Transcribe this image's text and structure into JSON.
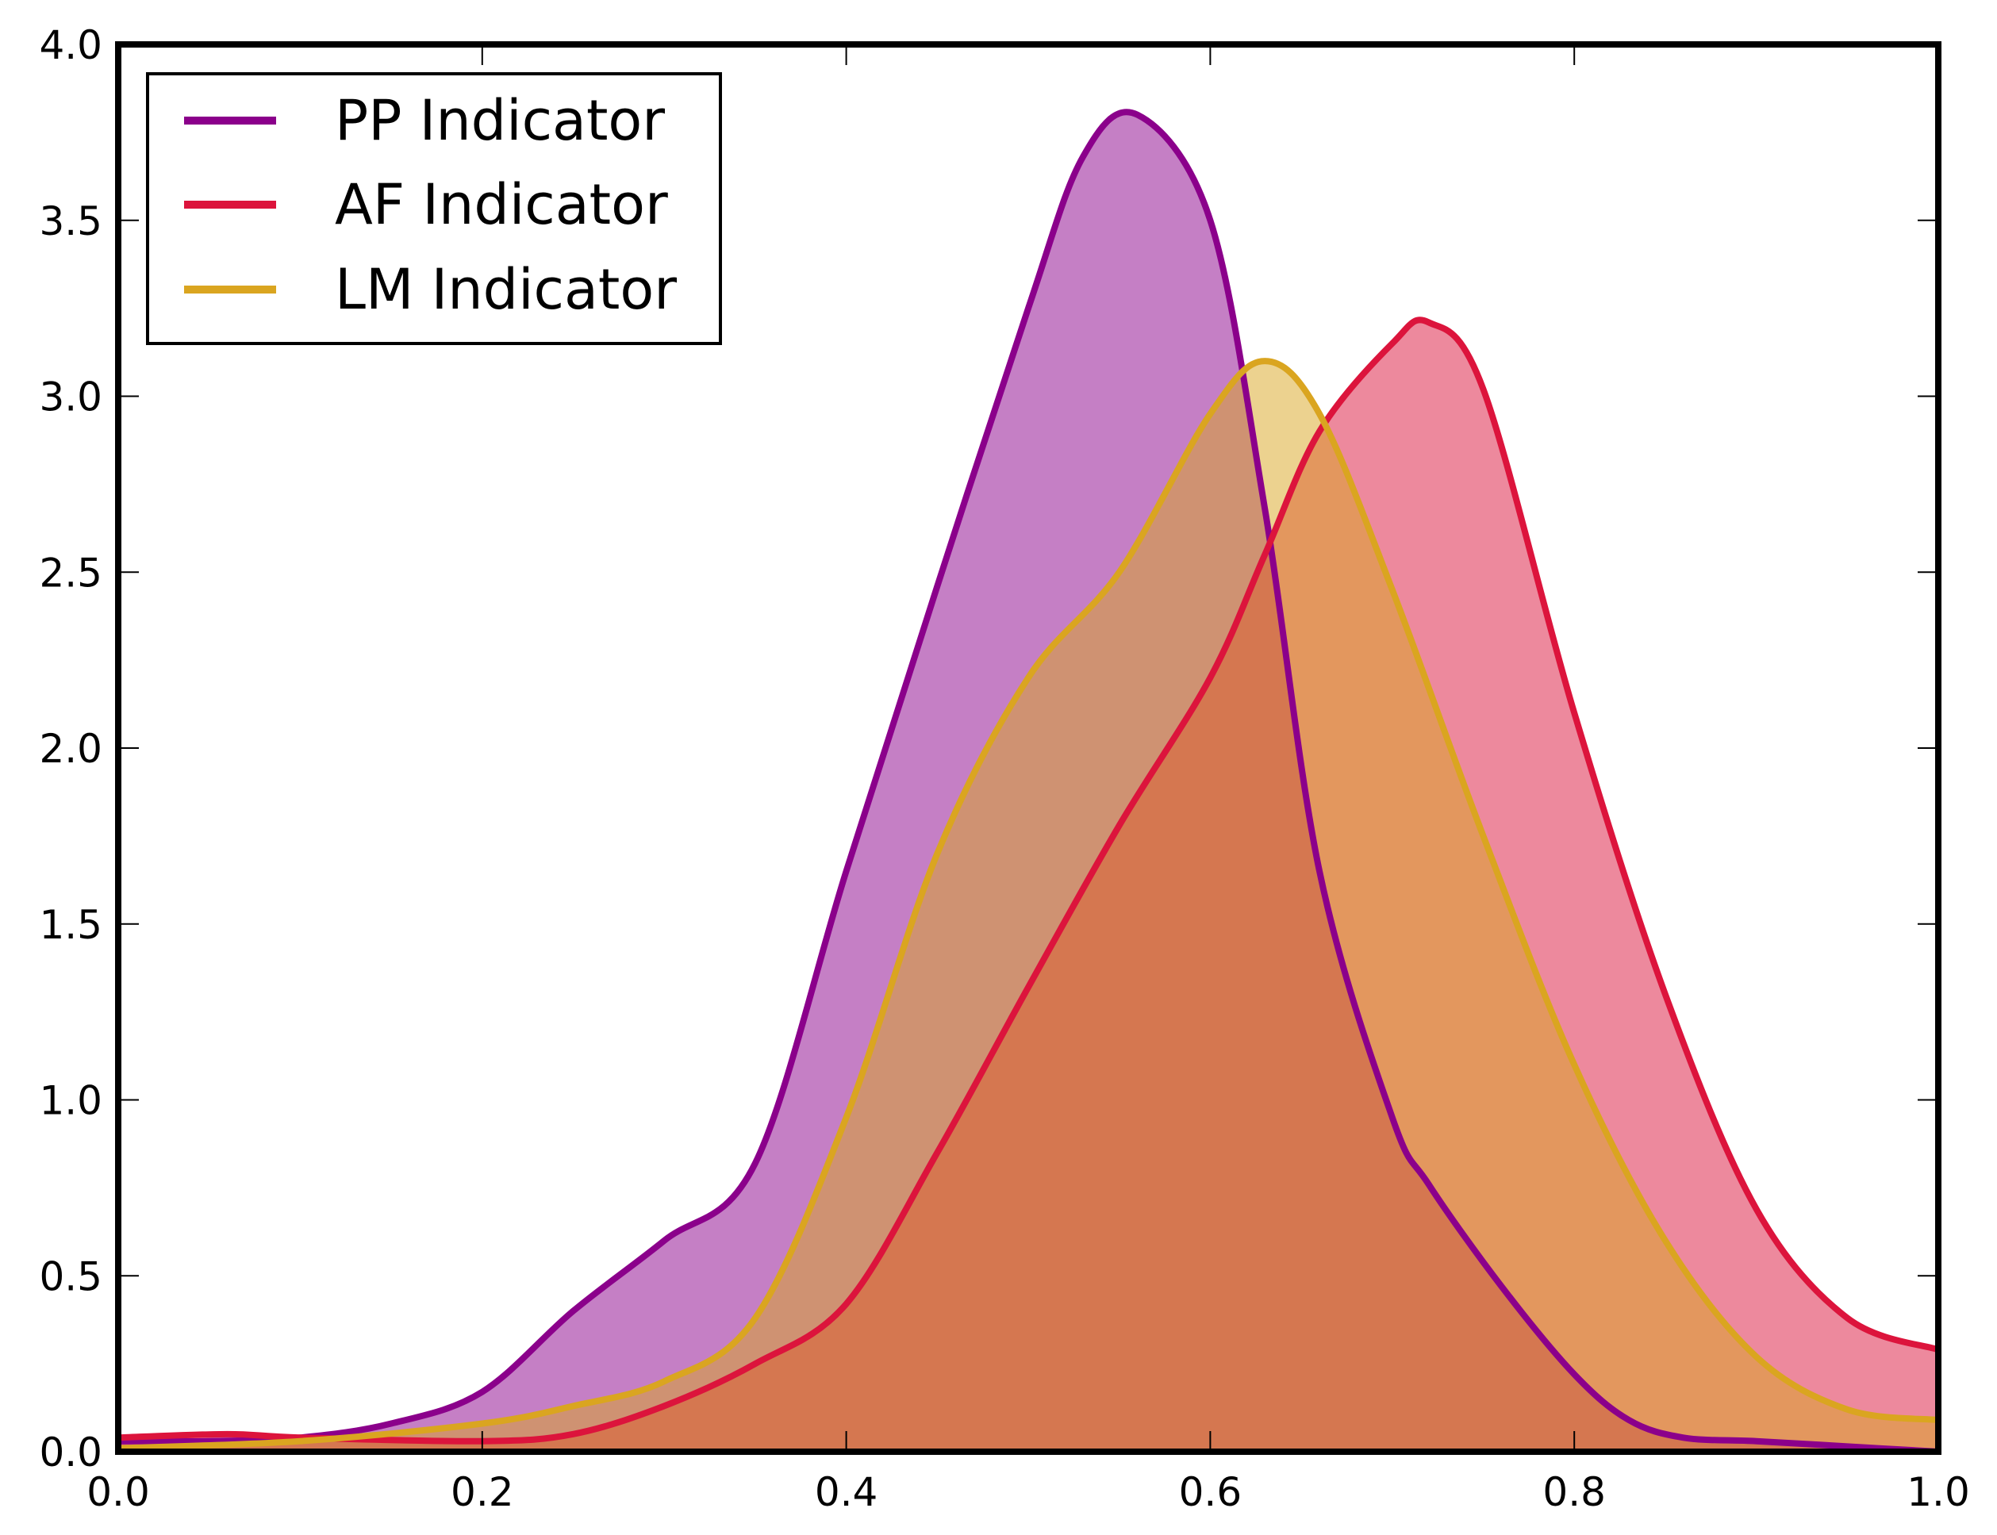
{
  "chart_data": {
    "type": "area",
    "title": "",
    "xlabel": "",
    "ylabel": "",
    "xlim": [
      0.0,
      1.0
    ],
    "ylim": [
      0.0,
      4.0
    ],
    "xticks": [
      "0.0",
      "0.2",
      "0.4",
      "0.6",
      "0.8",
      "1.0"
    ],
    "yticks": [
      "0.0",
      "0.5",
      "1.0",
      "1.5",
      "2.0",
      "2.5",
      "3.0",
      "3.5",
      "4.0"
    ],
    "grid": false,
    "legend_position": "top-left",
    "series": [
      {
        "name": "PP Indicator",
        "color": "#8B008B",
        "x": [
          0,
          0.05,
          0.1,
          0.15,
          0.2,
          0.25,
          0.3,
          0.35,
          0.4,
          0.45,
          0.5,
          0.53,
          0.56,
          0.6,
          0.63,
          0.66,
          0.7,
          0.72,
          0.76,
          0.8,
          0.83,
          0.86,
          0.9,
          0.95,
          1.0
        ],
        "y": [
          0.03,
          0.03,
          0.04,
          0.08,
          0.17,
          0.4,
          0.6,
          0.82,
          1.65,
          2.46,
          3.25,
          3.68,
          3.8,
          3.5,
          2.68,
          1.65,
          0.95,
          0.76,
          0.47,
          0.22,
          0.09,
          0.04,
          0.03,
          0.015,
          0.0
        ]
      },
      {
        "name": "AF Indicator",
        "color": "#DC143C",
        "x": [
          0,
          0.06,
          0.1,
          0.2,
          0.25,
          0.3,
          0.35,
          0.4,
          0.45,
          0.5,
          0.55,
          0.6,
          0.63,
          0.66,
          0.7,
          0.72,
          0.75,
          0.8,
          0.85,
          0.9,
          0.95,
          1.0
        ],
        "y": [
          0.04,
          0.05,
          0.04,
          0.03,
          0.05,
          0.13,
          0.25,
          0.42,
          0.85,
          1.32,
          1.78,
          2.2,
          2.55,
          2.9,
          3.15,
          3.21,
          3.02,
          2.1,
          1.3,
          0.69,
          0.38,
          0.29
        ]
      },
      {
        "name": "LM Indicator",
        "color": "#DAA520",
        "x": [
          0,
          0.1,
          0.2,
          0.25,
          0.3,
          0.35,
          0.4,
          0.45,
          0.5,
          0.55,
          0.6,
          0.63,
          0.66,
          0.7,
          0.75,
          0.8,
          0.85,
          0.9,
          0.95,
          1.0
        ],
        "y": [
          0.01,
          0.03,
          0.08,
          0.13,
          0.2,
          0.38,
          0.95,
          1.7,
          2.2,
          2.5,
          2.95,
          3.1,
          2.95,
          2.45,
          1.75,
          1.1,
          0.6,
          0.27,
          0.12,
          0.09
        ]
      }
    ]
  }
}
